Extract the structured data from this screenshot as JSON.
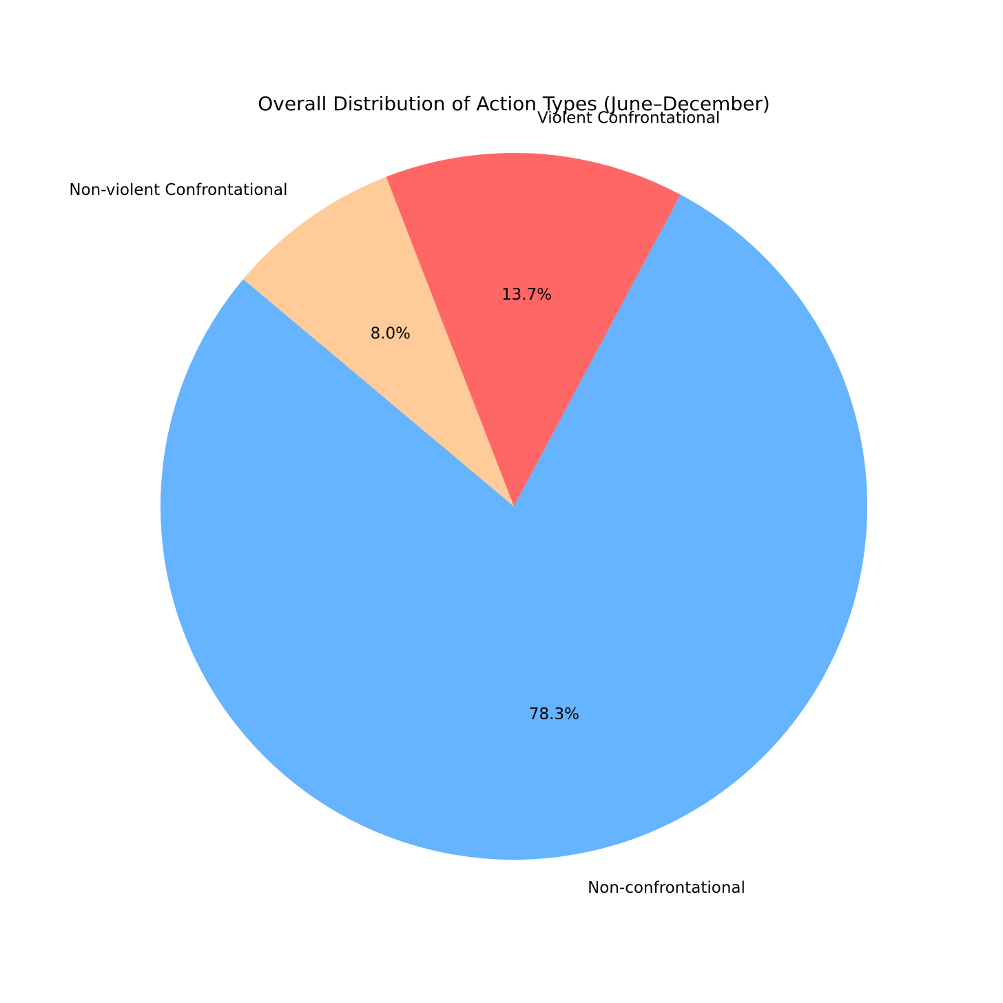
{
  "chart_data": {
    "type": "pie",
    "title": "Overall Distribution of Action Types (June–December)",
    "categories": [
      "Non-confrontational",
      "Violent Confrontational",
      "Non-violent Confrontational"
    ],
    "values": [
      78.3,
      13.7,
      8.0
    ],
    "percent_labels": [
      "78.3%",
      "13.7%",
      "8.0%"
    ],
    "colors": [
      "#66b3ff",
      "#ff6666",
      "#ffcc99"
    ],
    "start_angle_deg": 140,
    "direction": "counterclockwise",
    "legend": "none"
  }
}
